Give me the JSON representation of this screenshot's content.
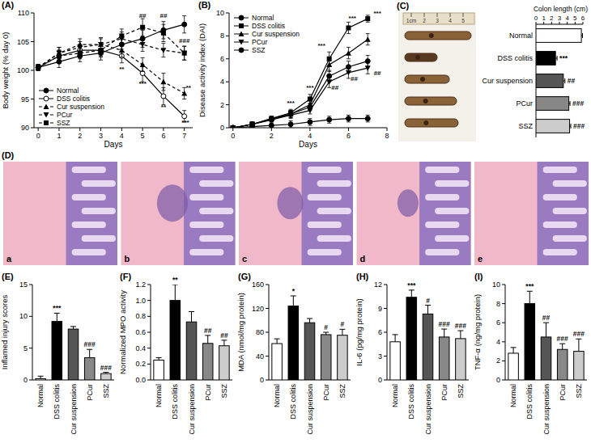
{
  "chart_data": [
    {
      "type": "line",
      "title": "(A)",
      "y_label": "Body weight (% day 0)",
      "x_label": "Days",
      "x": [
        0,
        1,
        2,
        3,
        4,
        5,
        6,
        7
      ],
      "xlim": [
        -0.2,
        7.4
      ],
      "xticks": [
        0,
        1,
        2,
        3,
        4,
        5,
        6,
        7
      ],
      "ylim": [
        90,
        110
      ],
      "yticks": [
        90,
        95,
        100,
        105,
        110
      ],
      "grid": false,
      "legend": "lower left",
      "series": [
        {
          "name": "Normal",
          "color": "#000000",
          "marker": "circle",
          "line_style": "solid",
          "values": [
            100.5,
            101.5,
            102.5,
            103,
            104.5,
            105.5,
            107,
            108
          ],
          "errors": [
            0.5,
            1,
            1,
            1.2,
            1.2,
            1.5,
            1.5,
            1.5
          ]
        },
        {
          "name": "DSS colitis",
          "color": "#000000",
          "marker": "open_circle",
          "line_style": "solid",
          "values": [
            100.5,
            102.5,
            103.5,
            103.5,
            102.5,
            99.5,
            95.5,
            92
          ],
          "errors": [
            0.5,
            1,
            1,
            1.2,
            1.2,
            1.5,
            1.5,
            1
          ]
        },
        {
          "name": "Cur suspension",
          "color": "#000000",
          "marker": "triangle",
          "line_style": "dashed",
          "values": [
            100.5,
            103,
            104.5,
            104.5,
            103.5,
            101,
            98,
            96
          ],
          "errors": [
            0.5,
            1,
            1,
            1.2,
            1.2,
            1.2,
            1.5,
            1
          ]
        },
        {
          "name": "PCur",
          "color": "#000000",
          "marker": "triangle_down",
          "line_style": "dashed",
          "values": [
            100.5,
            103,
            104,
            104.5,
            105.5,
            104.5,
            103.5,
            103
          ],
          "errors": [
            0.5,
            1,
            1,
            1,
            1.2,
            1.2,
            1.2,
            1.2
          ]
        },
        {
          "name": "SSZ",
          "color": "#000000",
          "marker": "square",
          "line_style": "dashed",
          "values": [
            100.5,
            102.5,
            103,
            103.5,
            106,
            107.5,
            106.5,
            103
          ],
          "errors": [
            0.5,
            1,
            1,
            1,
            1.2,
            1.5,
            1.5,
            1.2
          ]
        }
      ],
      "annotations": [
        {
          "text": "**",
          "x": 4,
          "y": 99.8
        },
        {
          "text": "***",
          "x": 5,
          "y": 97.3
        },
        {
          "text": "**",
          "x": 6,
          "y": 93.2
        },
        {
          "text": "***",
          "x": 7.05,
          "y": 90.6
        },
        {
          "text": "**",
          "x": 7.2,
          "y": 96.6
        },
        {
          "text": "##",
          "x": 5,
          "y": 109.2
        },
        {
          "text": "##",
          "x": 6,
          "y": 109.2
        },
        {
          "text": "###",
          "x": 7,
          "y": 104.8
        }
      ]
    },
    {
      "type": "line",
      "title": "(B)",
      "y_label": "Disease activity index (DAI)",
      "x_label": "Days",
      "x": [
        0,
        1,
        2,
        3,
        4,
        5,
        6,
        7
      ],
      "xlim": [
        -0.2,
        8
      ],
      "xticks": [
        0,
        2,
        4,
        6,
        8
      ],
      "ylim": [
        0,
        10
      ],
      "yticks": [
        0,
        2,
        4,
        6,
        8,
        10
      ],
      "grid": false,
      "legend": "upper left",
      "series": [
        {
          "name": "Normal",
          "color": "#000000",
          "marker": "circle",
          "line_style": "solid",
          "values": [
            0,
            0.1,
            0.2,
            0.3,
            0.5,
            0.7,
            0.8,
            0.8
          ],
          "errors": [
            0,
            0.2,
            0.2,
            0.3,
            0.3,
            0.3,
            0.3,
            0.3
          ]
        },
        {
          "name": "DSS colitis",
          "color": "#000000",
          "marker": "square",
          "line_style": "solid",
          "values": [
            0,
            0.3,
            0.8,
            1.3,
            2.5,
            6,
            8.7,
            9.5
          ],
          "errors": [
            0,
            0.2,
            0.2,
            0.3,
            0.4,
            0.6,
            0.5,
            0.3
          ]
        },
        {
          "name": "Cur suspension",
          "color": "#000000",
          "marker": "triangle",
          "line_style": "solid",
          "values": [
            0,
            0.3,
            0.8,
            1.2,
            2,
            5.5,
            6.5,
            7.7
          ],
          "errors": [
            0,
            0.2,
            0.2,
            0.3,
            0.4,
            0.6,
            0.5,
            0.5
          ]
        },
        {
          "name": "PCur",
          "color": "#000000",
          "marker": "triangle_down",
          "line_style": "solid",
          "values": [
            0,
            0.3,
            0.7,
            1.1,
            1.5,
            4,
            4.8,
            5.2
          ],
          "errors": [
            0,
            0.2,
            0.2,
            0.3,
            0.3,
            0.5,
            0.5,
            0.5
          ]
        },
        {
          "name": "SSZ",
          "color": "#000000",
          "marker": "circle",
          "line_style": "solid",
          "values": [
            0,
            0.3,
            0.7,
            1.2,
            1.8,
            4.5,
            5.3,
            5.8
          ],
          "errors": [
            0,
            0.2,
            0.2,
            0.3,
            0.3,
            0.5,
            0.5,
            0.5
          ]
        }
      ],
      "annotations": [
        {
          "text": "***",
          "x": 3,
          "y": 2.0
        },
        {
          "text": "***",
          "x": 4,
          "y": 3.3
        },
        {
          "text": "***",
          "x": 4.6,
          "y": 7.0
        },
        {
          "text": "***",
          "x": 6.2,
          "y": 9.4
        },
        {
          "text": "***",
          "x": 7.5,
          "y": 9.8
        },
        {
          "text": "##",
          "x": 5.3,
          "y": 3.3
        },
        {
          "text": "##",
          "x": 6.3,
          "y": 4.1
        },
        {
          "text": "##",
          "x": 7.5,
          "y": 4.6
        }
      ]
    },
    {
      "type": "bar",
      "orientation": "horizontal",
      "title": "(C)",
      "x_label": "Colon length (cm)",
      "categories": [
        "Normal",
        "DSS colitis",
        "Cur suspension",
        "PCur",
        "SSZ"
      ],
      "values": [
        5.8,
        2.5,
        3.5,
        4.2,
        4.3
      ],
      "errors": [
        0.15,
        0.2,
        0.2,
        0.15,
        0.15
      ],
      "colors": [
        "#ffffff",
        "#000000",
        "#555555",
        "#888888",
        "#cccccc"
      ],
      "xlim": [
        0,
        6
      ],
      "xticks": [
        0,
        1,
        2,
        3,
        4,
        5,
        6
      ],
      "grid": false,
      "significance": [
        null,
        "***",
        "##",
        "###",
        "###"
      ]
    },
    {
      "type": "bar",
      "title": "(E)",
      "y_label": "Inflamed injury scores",
      "categories": [
        "Normal",
        "DSS colitis",
        "Cur suspension",
        "PCur",
        "SSZ"
      ],
      "values": [
        0.2,
        9.2,
        8.0,
        3.5,
        1.0
      ],
      "errors": [
        0.4,
        1.3,
        0.4,
        1.3,
        0.2
      ],
      "colors": [
        "#ffffff",
        "#000000",
        "#555555",
        "#888888",
        "#cccccc"
      ],
      "ylim": [
        0,
        15
      ],
      "yticks": [
        0,
        5,
        10,
        15
      ],
      "grid": false,
      "significance": [
        null,
        "***",
        null,
        "###",
        "###"
      ]
    },
    {
      "type": "bar",
      "title": "(F)",
      "y_label": "Normalized MPO activity",
      "categories": [
        "Normal",
        "DSS colitis",
        "Cur suspension",
        "PCur",
        "SSZ"
      ],
      "values": [
        0.25,
        1.0,
        0.73,
        0.46,
        0.43
      ],
      "errors": [
        0.03,
        0.2,
        0.13,
        0.1,
        0.07
      ],
      "colors": [
        "#ffffff",
        "#000000",
        "#555555",
        "#888888",
        "#cccccc"
      ],
      "ylim": [
        0,
        1.2
      ],
      "yticks": [
        {
          "value": 0,
          "label": "0.0"
        },
        0.2,
        0.4,
        0.6,
        0.8,
        {
          "value": 1,
          "label": "1.0"
        },
        1.2
      ],
      "grid": false,
      "significance": [
        null,
        "**",
        null,
        "##",
        "##"
      ]
    },
    {
      "type": "bar",
      "title": "(G)",
      "y_label": "MDA (nmol/mg protein)",
      "categories": [
        "Normal",
        "DSS colitis",
        "Cur suspension",
        "PCur",
        "SSZ"
      ],
      "values": [
        61,
        124,
        96,
        76,
        75
      ],
      "errors": [
        8,
        17,
        7,
        4,
        10
      ],
      "colors": [
        "#ffffff",
        "#000000",
        "#555555",
        "#888888",
        "#cccccc"
      ],
      "ylim": [
        0,
        160
      ],
      "yticks": [
        0,
        40,
        80,
        120,
        160
      ],
      "grid": false,
      "significance": [
        null,
        "*",
        null,
        "#",
        "#"
      ]
    },
    {
      "type": "bar",
      "title": "(H)",
      "y_label": "IL-6 (pg/mg protein)",
      "categories": [
        "Normal",
        "DSS colitis",
        "Cur suspension",
        "PCur",
        "SSZ"
      ],
      "values": [
        4.8,
        10.4,
        8.3,
        5.4,
        5.2
      ],
      "errors": [
        0.9,
        0.9,
        1.1,
        1.0,
        1.0
      ],
      "colors": [
        "#ffffff",
        "#000000",
        "#555555",
        "#888888",
        "#cccccc"
      ],
      "ylim": [
        0,
        12
      ],
      "yticks": [
        0,
        3,
        6,
        9,
        12
      ],
      "grid": false,
      "significance": [
        null,
        "***",
        "#",
        "###",
        "###"
      ]
    },
    {
      "type": "bar",
      "title": "(I)",
      "y_label": "TNF-α (ng/mg protein)",
      "categories": [
        "Normal",
        "DSS colitis",
        "Cur suspension",
        "PCur",
        "SSZ"
      ],
      "values": [
        2.8,
        8.0,
        4.5,
        3.2,
        3.0
      ],
      "errors": [
        0.6,
        1.3,
        1.5,
        0.6,
        1.3
      ],
      "colors": [
        "#ffffff",
        "#000000",
        "#555555",
        "#888888",
        "#cccccc"
      ],
      "ylim": [
        0,
        10
      ],
      "yticks": [
        0,
        2,
        4,
        6,
        8,
        10
      ],
      "grid": false,
      "significance": [
        null,
        "***",
        "##",
        "###",
        "###"
      ]
    }
  ],
  "photo": {
    "ruler_labels": [
      "1cm",
      "2",
      "3",
      "4",
      "5"
    ]
  },
  "histology": {
    "title": "(D)",
    "panel_labels": [
      "a",
      "b",
      "c",
      "d",
      "e"
    ]
  }
}
